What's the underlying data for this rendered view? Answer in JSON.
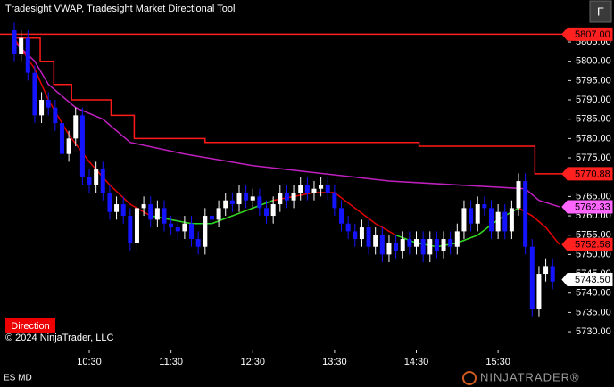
{
  "chart_data": {
    "type": "candlestick",
    "title": "Tradesight VWAP, Tradesight Market Directional Tool",
    "button": "F",
    "direction_label": "Direction",
    "copyright": "© 2024 NinjaTrader, LLC",
    "instrument": "ES MD",
    "logo": "NINJATRADER®",
    "up_color": "#ffffff",
    "down_color": "#1414ff",
    "xlim": [
      564.5,
      981
    ],
    "ylim": [
      5725.4,
      5815.85
    ],
    "xticks": [
      {
        "value": 630,
        "label": "10:30"
      },
      {
        "value": 690,
        "label": "11:30"
      },
      {
        "value": 750,
        "label": "12:30"
      },
      {
        "value": 810,
        "label": "13:30"
      },
      {
        "value": 870,
        "label": "14:30"
      },
      {
        "value": 930,
        "label": "15:30"
      }
    ],
    "yticks": [
      {
        "value": 5730,
        "label": "5730.00"
      },
      {
        "value": 5735,
        "label": "5735.00"
      },
      {
        "value": 5740,
        "label": "5740.00"
      },
      {
        "value": 5745,
        "label": "5745.00"
      },
      {
        "value": 5750,
        "label": "5750.00"
      },
      {
        "value": 5755,
        "label": "5755.00"
      },
      {
        "value": 5760,
        "label": "5760.00"
      },
      {
        "value": 5765,
        "label": "5765.00"
      },
      {
        "value": 5770,
        "label": "5770.00"
      },
      {
        "value": 5775,
        "label": "5775.00"
      },
      {
        "value": 5780,
        "label": "5780.00"
      },
      {
        "value": 5785,
        "label": "5785.00"
      },
      {
        "value": 5790,
        "label": "5790.00"
      },
      {
        "value": 5795,
        "label": "5795.00"
      },
      {
        "value": 5800,
        "label": "5800.00"
      },
      {
        "value": 5805,
        "label": "5805.00"
      }
    ],
    "x": [
      575,
      580,
      585,
      590,
      595,
      600,
      605,
      610,
      615,
      620,
      625,
      630,
      635,
      640,
      645,
      650,
      655,
      660,
      665,
      670,
      675,
      680,
      685,
      690,
      695,
      700,
      705,
      710,
      715,
      720,
      725,
      730,
      735,
      740,
      745,
      750,
      755,
      760,
      765,
      770,
      775,
      780,
      785,
      790,
      795,
      800,
      805,
      810,
      815,
      820,
      825,
      830,
      835,
      840,
      845,
      850,
      855,
      860,
      865,
      870,
      875,
      880,
      885,
      890,
      895,
      900,
      905,
      910,
      915,
      920,
      925,
      930,
      935,
      940,
      945,
      950,
      955,
      960,
      965,
      970
    ],
    "open": [
      5808,
      5802,
      5806,
      5797,
      5786,
      5790,
      5788,
      5784,
      5776,
      5780,
      5786,
      5770,
      5768,
      5772,
      5766,
      5761,
      5763,
      5760,
      5753,
      5762,
      5763,
      5759,
      5762,
      5758,
      5757,
      5756,
      5758,
      5754,
      5752,
      5760,
      5759,
      5762,
      5764,
      5763,
      5766,
      5764,
      5765,
      5762,
      5760,
      5763,
      5766,
      5764,
      5766,
      5768,
      5766,
      5767,
      5768,
      5766,
      5762,
      5758,
      5756,
      5754,
      5757,
      5752,
      5755,
      5750,
      5753,
      5751,
      5754,
      5752,
      5754,
      5750,
      5754,
      5751,
      5754,
      5752,
      5756,
      5762,
      5758,
      5763,
      5762,
      5756,
      5761,
      5756,
      5762,
      5769,
      5752,
      5736,
      5745,
      5747
    ],
    "high": [
      5810,
      5808,
      5808,
      5799,
      5792,
      5792,
      5790,
      5786,
      5782,
      5788,
      5788,
      5772,
      5774,
      5774,
      5768,
      5765,
      5765,
      5762,
      5764,
      5765,
      5765,
      5764,
      5764,
      5760,
      5759,
      5760,
      5760,
      5756,
      5762,
      5762,
      5764,
      5766,
      5766,
      5768,
      5768,
      5767,
      5767,
      5764,
      5765,
      5768,
      5768,
      5768,
      5770,
      5770,
      5769,
      5770,
      5770,
      5768,
      5764,
      5760,
      5758,
      5759,
      5759,
      5757,
      5757,
      5755,
      5755,
      5756,
      5756,
      5756,
      5756,
      5756,
      5756,
      5756,
      5756,
      5758,
      5764,
      5764,
      5765,
      5765,
      5764,
      5763,
      5763,
      5764,
      5771,
      5771,
      5754,
      5747,
      5749,
      5749
    ],
    "low": [
      5800,
      5800,
      5795,
      5784,
      5784,
      5786,
      5782,
      5774,
      5774,
      5778,
      5768,
      5766,
      5766,
      5764,
      5759,
      5759,
      5758,
      5751,
      5751,
      5760,
      5757,
      5757,
      5756,
      5755,
      5754,
      5754,
      5752,
      5750,
      5750,
      5757,
      5757,
      5760,
      5761,
      5761,
      5762,
      5762,
      5760,
      5758,
      5758,
      5761,
      5762,
      5762,
      5764,
      5764,
      5764,
      5765,
      5764,
      5760,
      5756,
      5754,
      5752,
      5752,
      5750,
      5750,
      5748,
      5748,
      5749,
      5749,
      5750,
      5750,
      5748,
      5748,
      5749,
      5749,
      5750,
      5750,
      5754,
      5756,
      5756,
      5760,
      5754,
      5754,
      5754,
      5754,
      5760,
      5750,
      5734,
      5734,
      5743,
      5741
    ],
    "close": [
      5802,
      5806,
      5797,
      5786,
      5790,
      5788,
      5784,
      5776,
      5780,
      5786,
      5770,
      5768,
      5772,
      5766,
      5761,
      5763,
      5760,
      5753,
      5762,
      5763,
      5759,
      5762,
      5758,
      5757,
      5756,
      5758,
      5754,
      5752,
      5760,
      5759,
      5762,
      5764,
      5763,
      5766,
      5764,
      5765,
      5762,
      5760,
      5763,
      5766,
      5764,
      5766,
      5768,
      5766,
      5767,
      5768,
      5766,
      5762,
      5758,
      5756,
      5754,
      5757,
      5752,
      5755,
      5750,
      5753,
      5751,
      5754,
      5752,
      5754,
      5750,
      5754,
      5751,
      5754,
      5752,
      5756,
      5762,
      5758,
      5763,
      5762,
      5756,
      5761,
      5756,
      5762,
      5769,
      5752,
      5736,
      5745,
      5747,
      5743
    ],
    "series": [
      {
        "color": "#ff1a1a",
        "step": true,
        "x": [
          575,
          594,
          604,
          617,
          646,
          663,
          715,
          872,
          957,
          980
        ],
        "values": [
          5806,
          5800,
          5794,
          5790,
          5786,
          5780,
          5779,
          5778,
          5770.88,
          5770.88
        ]
      },
      {
        "color": "#c020c0",
        "x": [
          575,
          590,
          600,
          620,
          640,
          660,
          700,
          750,
          800,
          850,
          900,
          950,
          960,
          975
        ],
        "values": [
          5805,
          5800,
          5794,
          5788,
          5785,
          5779,
          5776,
          5773,
          5771,
          5769,
          5768,
          5767,
          5764,
          5762.33
        ]
      },
      {
        "color": "#e00000",
        "x": [
          575,
          590,
          600,
          615,
          630,
          645,
          660,
          675,
          690,
          705,
          720,
          735,
          750,
          765,
          780,
          795,
          810,
          825,
          840,
          855,
          870,
          885,
          900,
          915,
          930,
          945,
          955,
          965,
          975
        ],
        "values": [
          5806,
          5798,
          5790,
          5781,
          5774,
          5768,
          5763,
          5760,
          5759,
          5758,
          5758,
          5760,
          5762,
          5764,
          5765,
          5766,
          5766,
          5762,
          5758,
          5755,
          5753,
          5752,
          5753,
          5755,
          5759,
          5762,
          5760,
          5757,
          5752.58
        ]
      },
      {
        "color": "#22dd22",
        "x": [
          575,
          590,
          600,
          615,
          630,
          645,
          660,
          675,
          690,
          705,
          720,
          735,
          750,
          765,
          780,
          795,
          810,
          825,
          840,
          855,
          870,
          885,
          900,
          915,
          930,
          945,
          955,
          965,
          975
        ],
        "values": [
          null,
          null,
          null,
          null,
          null,
          null,
          null,
          5760,
          5759,
          5758,
          5758,
          5760,
          5762,
          5764,
          null,
          null,
          null,
          null,
          null,
          5755,
          5753,
          5752,
          5753,
          5755,
          5759,
          5762,
          null,
          null,
          null
        ]
      }
    ],
    "price_markers": [
      {
        "value": 5807,
        "label": "5807.00",
        "color": "#ff2020",
        "full_line": true
      },
      {
        "value": 5770.88,
        "label": "5770.88",
        "color": "#ff2020"
      },
      {
        "value": 5762.33,
        "label": "5762.33",
        "color": "#ff66ff"
      },
      {
        "value": 5752.58,
        "label": "5752.58",
        "color": "#ff2020"
      },
      {
        "value": 5743.5,
        "label": "5743.50",
        "color": "#ffffff"
      }
    ]
  }
}
